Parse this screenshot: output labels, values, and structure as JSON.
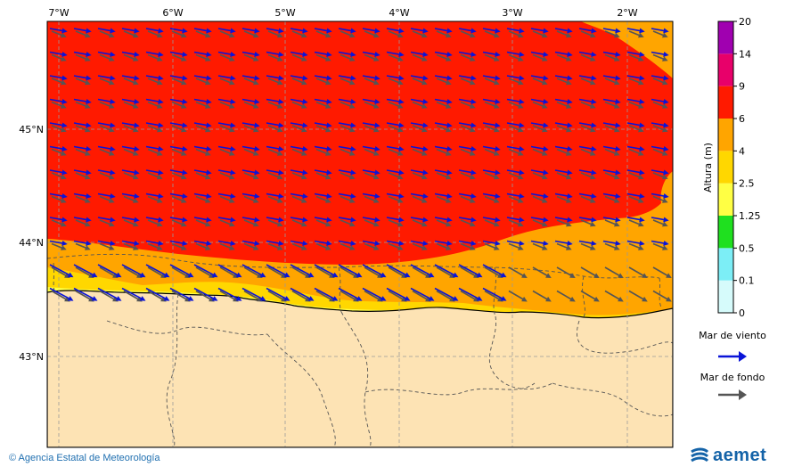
{
  "map": {
    "lon_ticks": [
      "7°W",
      "6°W",
      "5°W",
      "4°W",
      "3°W",
      "2°W"
    ],
    "lat_ticks": [
      "45°N",
      "44°N",
      "43°N"
    ]
  },
  "colorbar": {
    "label": "Altura (m)",
    "levels": [
      "0",
      "0.1",
      "0.5",
      "1.25",
      "2.5",
      "4",
      "6",
      "9",
      "14",
      "20"
    ],
    "colors": [
      "#d6fbfb",
      "#7ceef6",
      "#1fe01f",
      "#ffff44",
      "#ffd700",
      "#ffa500",
      "#ff1a00",
      "#e8006a",
      "#a000b0"
    ]
  },
  "legend": {
    "wind_sea_label": "Mar de viento",
    "wind_sea_color": "#0a14d8",
    "swell_label": "Mar de fondo",
    "swell_color": "#555555"
  },
  "footer": {
    "credit": "© Agencia Estatal de Meteorología",
    "logo_text": "aemet"
  }
}
